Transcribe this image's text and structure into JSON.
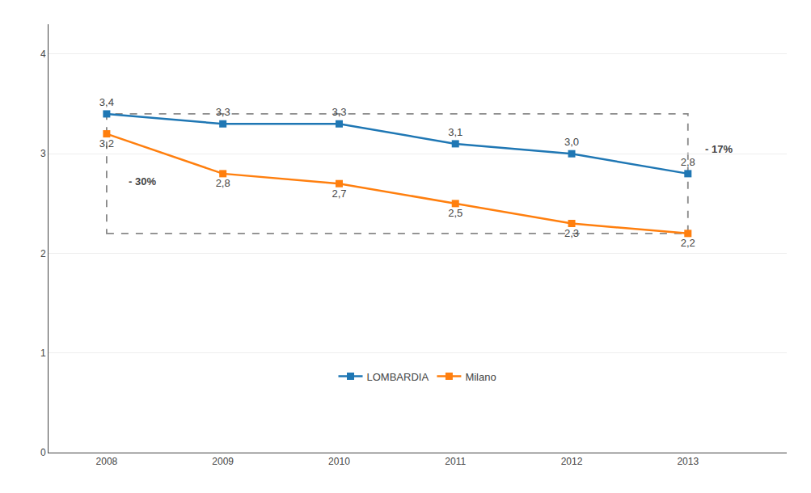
{
  "chart_data": {
    "type": "line",
    "x": [
      2008,
      2009,
      2010,
      2011,
      2012,
      2013
    ],
    "series": [
      {
        "name": "LOMBARDIA",
        "values": [
          3.4,
          3.3,
          3.3,
          3.1,
          3.0,
          2.8
        ],
        "value_labels": [
          "3,4",
          "3,3",
          "3,3",
          "3,1",
          "3,0",
          "2,8"
        ],
        "marker": "square"
      },
      {
        "name": "Milano",
        "values": [
          3.2,
          2.8,
          2.7,
          2.5,
          2.3,
          2.2
        ],
        "value_labels": [
          "3,2",
          "2,8",
          "2,7",
          "2,5",
          "2,3",
          "2,2"
        ],
        "marker": "square"
      }
    ],
    "xlim": [
      2007.5,
      2013.85
    ],
    "xticks": [
      2008,
      2009,
      2010,
      2011,
      2012,
      2013
    ],
    "ylim": [
      0,
      4.3
    ],
    "yticks": [
      0,
      1,
      2,
      3,
      4
    ],
    "grid": true,
    "legend": "bottom",
    "data_labels": true,
    "annotations": [
      {
        "text": "- 30%",
        "x": 2008.12,
        "y": 2.72
      },
      {
        "text": "- 17%",
        "x": 2013.08,
        "y": 3.05
      }
    ]
  }
}
